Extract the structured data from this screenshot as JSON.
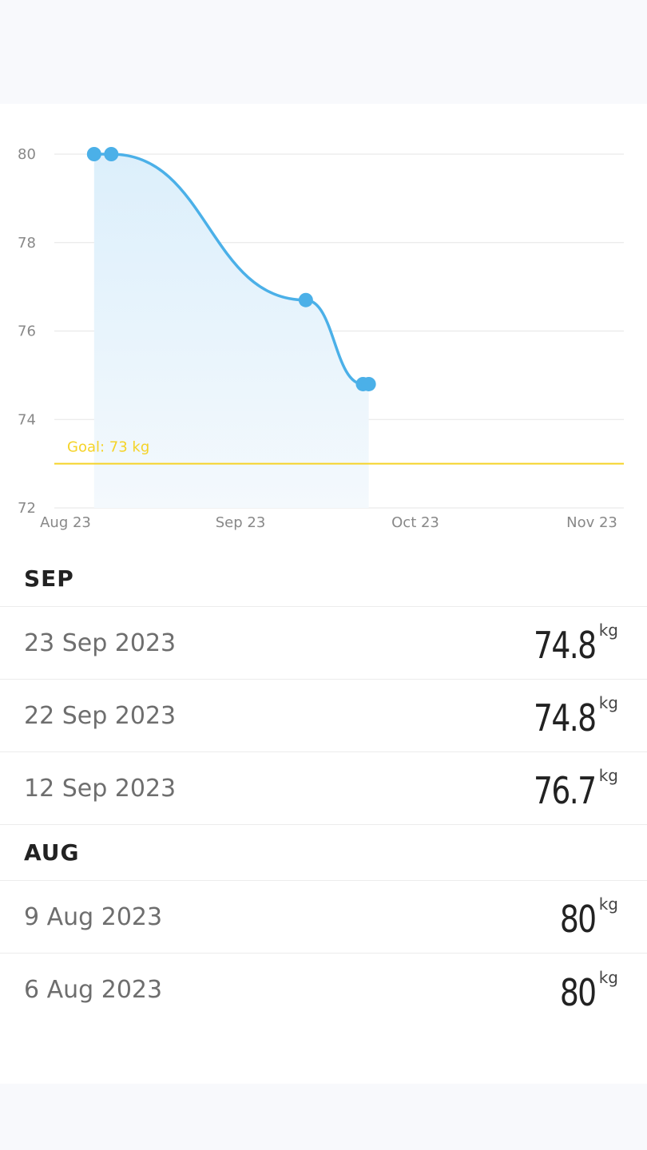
{
  "colors": {
    "line": "#4bb0e8",
    "area_top": "#dceffb",
    "area_bottom": "#f4f9fd",
    "goal": "#f5d327",
    "grid": "#e6e6e6"
  },
  "chart_data": {
    "type": "line",
    "y_ticks": [
      "80",
      "78",
      "76",
      "74",
      "72"
    ],
    "x_ticks": [
      "Aug 23",
      "Sep 23",
      "Oct 23",
      "Nov 23"
    ],
    "ylim": [
      72,
      80
    ],
    "x_domain_days": [
      0,
      92
    ],
    "points": [
      {
        "day": 5,
        "value": 80
      },
      {
        "day": 8,
        "value": 80
      },
      {
        "day": 42,
        "value": 76.7
      },
      {
        "day": 52,
        "value": 74.8
      },
      {
        "day": 53,
        "value": 74.8
      }
    ],
    "goal": {
      "value": 73,
      "label": "Goal: 73 kg"
    }
  },
  "sections": [
    {
      "title": "SEP",
      "entries": [
        {
          "date": "23 Sep 2023",
          "value": "74.8",
          "unit": "kg"
        },
        {
          "date": "22 Sep 2023",
          "value": "74.8",
          "unit": "kg"
        },
        {
          "date": "12 Sep 2023",
          "value": "76.7",
          "unit": "kg"
        }
      ]
    },
    {
      "title": "AUG",
      "entries": [
        {
          "date": "9 Aug 2023",
          "value": "80",
          "unit": "kg"
        },
        {
          "date": "6 Aug 2023",
          "value": "80",
          "unit": "kg"
        }
      ]
    }
  ]
}
